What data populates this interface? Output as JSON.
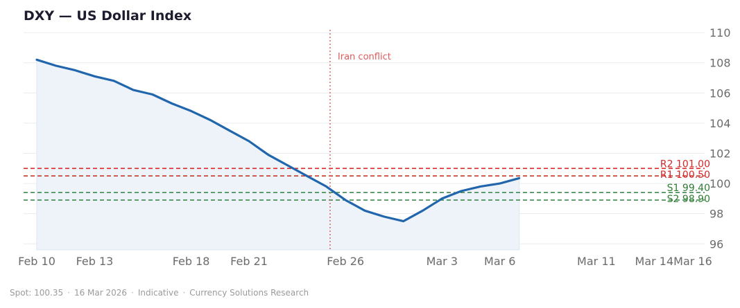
{
  "chart_data": {
    "type": "line",
    "title": "DXY — US Dollar Index",
    "xlabel": "",
    "ylabel": "",
    "ylim": [
      95.6,
      110.6
    ],
    "yticks": [
      96,
      98,
      100,
      102,
      104,
      106,
      108,
      110
    ],
    "x_day_range": [
      0,
      34
    ],
    "xticks": [
      {
        "label": "Feb 10",
        "day": 0
      },
      {
        "label": "Feb 13",
        "day": 3
      },
      {
        "label": "Feb 18",
        "day": 8
      },
      {
        "label": "Feb 21",
        "day": 11
      },
      {
        "label": "Feb 26",
        "day": 16
      },
      {
        "label": "Mar 3",
        "day": 21
      },
      {
        "label": "Mar 6",
        "day": 24
      },
      {
        "label": "Mar 11",
        "day": 29
      },
      {
        "label": "Mar 14",
        "day": 32
      },
      {
        "label": "Mar 16",
        "day": 34
      }
    ],
    "series": [
      {
        "name": "DXY",
        "color": "#2166ac",
        "fill": "#edf3f9",
        "points": [
          {
            "day": 0,
            "value": 108.2
          },
          {
            "day": 1,
            "value": 107.8
          },
          {
            "day": 2,
            "value": 107.5
          },
          {
            "day": 3,
            "value": 107.1
          },
          {
            "day": 4,
            "value": 106.8
          },
          {
            "day": 5,
            "value": 106.2
          },
          {
            "day": 6,
            "value": 105.9
          },
          {
            "day": 7,
            "value": 105.3
          },
          {
            "day": 8,
            "value": 104.8
          },
          {
            "day": 9,
            "value": 104.2
          },
          {
            "day": 10,
            "value": 103.5
          },
          {
            "day": 11,
            "value": 102.8
          },
          {
            "day": 12,
            "value": 101.9
          },
          {
            "day": 13,
            "value": 101.2
          },
          {
            "day": 14,
            "value": 100.5
          },
          {
            "day": 15,
            "value": 99.8
          },
          {
            "day": 16,
            "value": 98.9
          },
          {
            "day": 17,
            "value": 98.2
          },
          {
            "day": 18,
            "value": 97.8
          },
          {
            "day": 19,
            "value": 97.5
          },
          {
            "day": 20,
            "value": 98.2
          },
          {
            "day": 21,
            "value": 99.0
          },
          {
            "day": 22,
            "value": 99.5
          },
          {
            "day": 23,
            "value": 99.8
          },
          {
            "day": 24,
            "value": 100.0
          },
          {
            "day": 25,
            "value": 100.35
          }
        ]
      }
    ],
    "levels": [
      {
        "label": "R2 101.00",
        "value": 101.0,
        "color": "#d62728",
        "text_color": "#d62728"
      },
      {
        "label": "R1 100.50",
        "value": 100.5,
        "color": "#c0392b",
        "text_color": "#d62728"
      },
      {
        "label": "S1 99.40",
        "value": 99.4,
        "color": "#3c8a4e",
        "text_color": "#2e7d32"
      },
      {
        "label": "S2 98.90",
        "value": 98.9,
        "color": "#3c8a4e",
        "text_color": "#2e7d32"
      }
    ],
    "annotations": [
      {
        "label": "Iran conflict",
        "day": 15.2,
        "color": "#e05a5a"
      }
    ],
    "grid": true,
    "legend": "none"
  },
  "footer": {
    "spot": "Spot: 100.35",
    "date": "16 Mar 2026",
    "note": "Indicative",
    "source": "Currency Solutions Research",
    "separator": "·"
  }
}
